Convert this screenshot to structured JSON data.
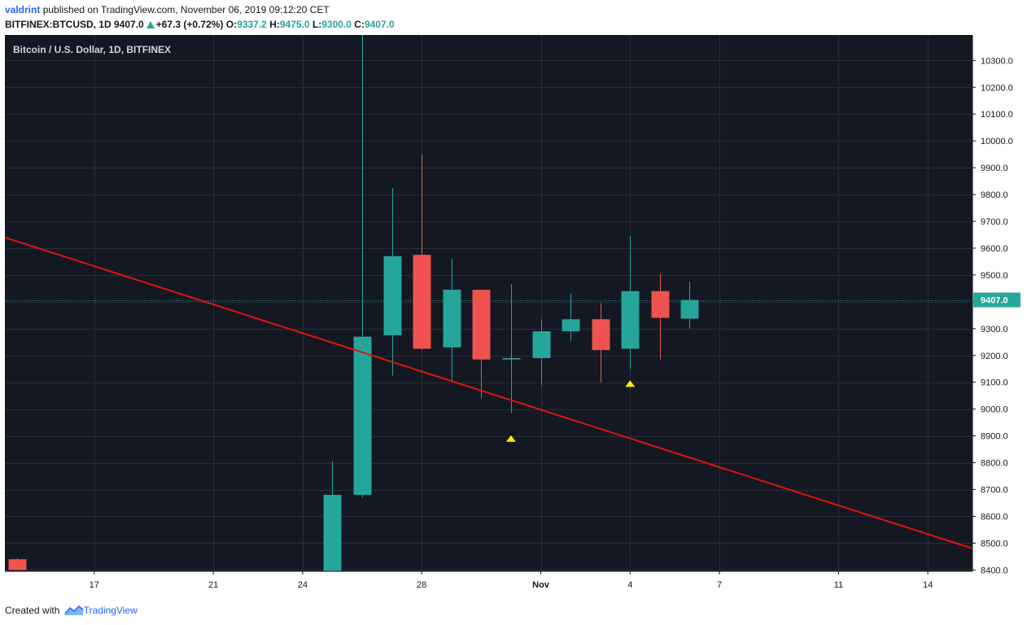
{
  "header": {
    "author": "valdrint",
    "published_text": "published on TradingView.com, November 06, 2019 09:12:20 CET",
    "symbol": "BITFINEX:BTCUSD, 1D",
    "last": "9407.0",
    "change": "+67.3 (+0.72%)",
    "o_label": "O:",
    "o_value": "9337.2",
    "h_label": "H:",
    "h_value": "9475.0",
    "l_label": "L:",
    "l_value": "9300.0",
    "c_label": "C:",
    "c_value": "9407.0"
  },
  "footer": {
    "created_with": "Created with",
    "brand": "TradingView"
  },
  "colors": {
    "background": "#141823",
    "grid": "#2a2e39",
    "up": "#26a69a",
    "down": "#ef5350",
    "trendline": "#e0140e",
    "marker": "#ffeb00",
    "price_line": "#26a69a"
  },
  "chart_data": {
    "type": "candlestick",
    "title": "Bitcoin / U.S. Dollar, 1D, BITFINEX",
    "x_tick_labels": [
      "17",
      "21",
      "24",
      "28",
      "Nov",
      "4",
      "7",
      "11",
      "14"
    ],
    "x_tick_days": [
      17,
      21,
      24,
      28,
      32,
      35,
      38,
      42,
      45
    ],
    "x_range_days": [
      14,
      46.5
    ],
    "y_tick_values": [
      8400,
      8500,
      8600,
      8700,
      8800,
      8900,
      9000,
      9100,
      9200,
      9300,
      9400,
      9500,
      9600,
      9700,
      9800,
      9900,
      10000,
      10100,
      10200,
      10300
    ],
    "y_tick_labels": [
      "8400.0",
      "8500.0",
      "8600.0",
      "8700.0",
      "8800.0",
      "8900.0",
      "9000.0",
      "9100.0",
      "9200.0",
      "9300.0",
      "9400.0",
      "9500.0",
      "9600.0",
      "9700.0",
      "9800.0",
      "9900.0",
      "10000.0",
      "10100.0",
      "10200.0",
      "10300.0"
    ],
    "ylim": [
      8395,
      10395
    ],
    "current_price": 9407,
    "current_price_label": "9407.0",
    "candles": [
      {
        "day": 14.4,
        "o": 8440,
        "h": 8445,
        "l": 8400,
        "c": 8400
      },
      {
        "day": 25,
        "o": 8395,
        "h": 8805,
        "l": 8395,
        "c": 8680
      },
      {
        "day": 26,
        "o": 8680,
        "h": 10395,
        "l": 8670,
        "c": 9270
      },
      {
        "day": 27,
        "o": 9275,
        "h": 9825,
        "l": 9125,
        "c": 9570
      },
      {
        "day": 28,
        "o": 9575,
        "h": 9950,
        "l": 9220,
        "c": 9225
      },
      {
        "day": 29,
        "o": 9230,
        "h": 9560,
        "l": 9105,
        "c": 9445
      },
      {
        "day": 30,
        "o": 9445,
        "h": 9445,
        "l": 9040,
        "c": 9185
      },
      {
        "day": 31,
        "o": 9185,
        "h": 9465,
        "l": 8985,
        "c": 9190
      },
      {
        "day": 32,
        "o": 9190,
        "h": 9335,
        "l": 9090,
        "c": 9290
      },
      {
        "day": 33,
        "o": 9290,
        "h": 9430,
        "l": 9255,
        "c": 9335
      },
      {
        "day": 34,
        "o": 9335,
        "h": 9395,
        "l": 9100,
        "c": 9220
      },
      {
        "day": 35,
        "o": 9225,
        "h": 9645,
        "l": 9150,
        "c": 9440
      },
      {
        "day": 36,
        "o": 9440,
        "h": 9505,
        "l": 9185,
        "c": 9340
      },
      {
        "day": 37,
        "o": 9337.2,
        "h": 9475,
        "l": 9300,
        "c": 9407
      }
    ],
    "markers": [
      {
        "day": 31,
        "price": 8890
      },
      {
        "day": 35,
        "price": 9095
      }
    ],
    "trendline": {
      "from": {
        "day": 14,
        "price": 9640
      },
      "to": {
        "day": 46.5,
        "price": 8480
      }
    }
  }
}
